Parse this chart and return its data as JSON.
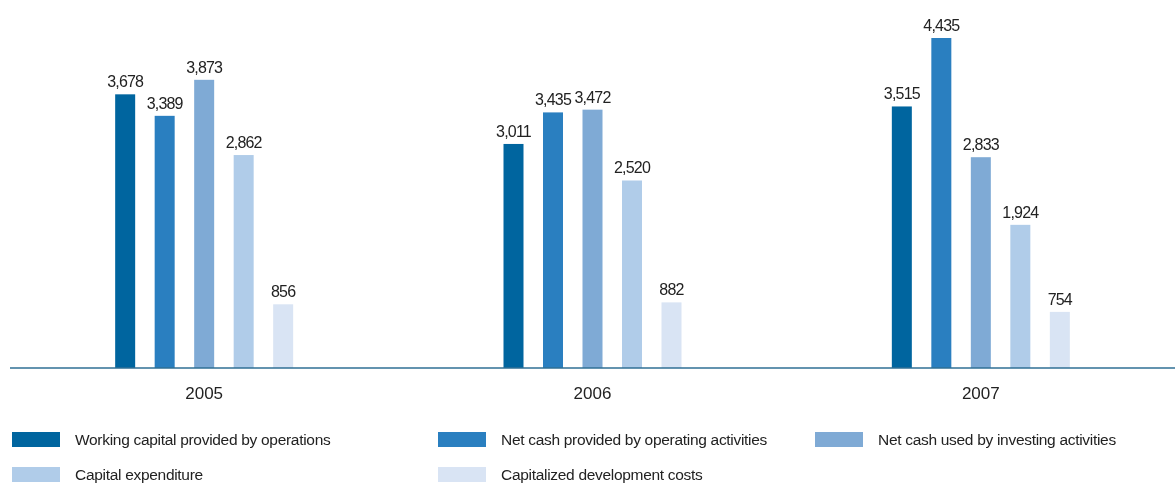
{
  "chart_data": {
    "type": "bar",
    "categories": [
      "2005",
      "2006",
      "2007"
    ],
    "series": [
      {
        "name": "Working capital provided by operations",
        "color": "#00659f",
        "values": [
          3678,
          3011,
          3515
        ],
        "value_labels": [
          "3,678",
          "3,011",
          "3,515"
        ]
      },
      {
        "name": "Net cash provided by operating activities",
        "color": "#2a7fc0",
        "values": [
          3389,
          3435,
          4435
        ],
        "value_labels": [
          "3,389",
          "3,435",
          "4,435"
        ]
      },
      {
        "name": "Net cash used by investing activities",
        "color": "#7faad5",
        "values": [
          3873,
          3472,
          2833
        ],
        "value_labels": [
          "3,873",
          "3,472",
          "2,833"
        ]
      },
      {
        "name": "Capital expenditure",
        "color": "#b0cce9",
        "values": [
          2862,
          2520,
          1924
        ],
        "value_labels": [
          "2,862",
          "2,520",
          "1,924"
        ]
      },
      {
        "name": "Capitalized development costs",
        "color": "#d9e4f4",
        "values": [
          856,
          882,
          754
        ],
        "value_labels": [
          "856",
          "882",
          "754"
        ]
      }
    ],
    "legend": "bottom"
  }
}
